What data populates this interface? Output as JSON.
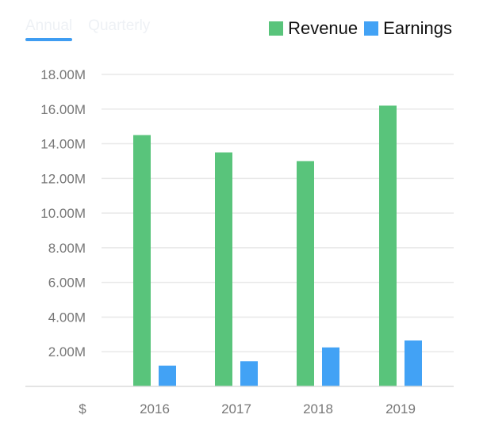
{
  "tabs": [
    {
      "label": "Annual",
      "active": true
    },
    {
      "label": "Quarterly",
      "active": false
    }
  ],
  "legend": [
    {
      "label": "Revenue",
      "color": "#59c47b"
    },
    {
      "label": "Earnings",
      "color": "#42a2f5"
    }
  ],
  "chart_data": {
    "type": "bar",
    "categories": [
      "2016",
      "2017",
      "2018",
      "2019"
    ],
    "series": [
      {
        "name": "Revenue",
        "values": [
          14.5,
          13.5,
          13.0,
          16.2
        ],
        "color": "#59c47b"
      },
      {
        "name": "Earnings",
        "values": [
          1.2,
          1.45,
          2.25,
          2.65
        ],
        "color": "#42a2f5"
      }
    ],
    "y_ticks": [
      "2.00M",
      "4.00M",
      "6.00M",
      "8.00M",
      "10.00M",
      "12.00M",
      "14.00M",
      "16.00M",
      "18.00M"
    ],
    "y_tick_values": [
      2,
      4,
      6,
      8,
      10,
      12,
      14,
      16,
      18
    ],
    "ylim": [
      0,
      18
    ],
    "y_unit_label": "$",
    "grid": true,
    "legend_position": "top-right"
  }
}
